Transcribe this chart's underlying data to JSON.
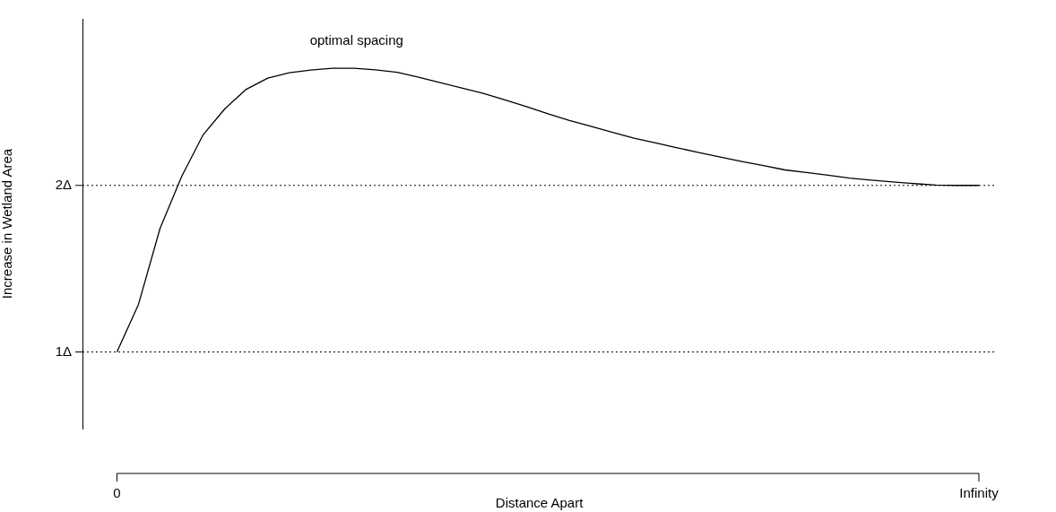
{
  "chart_data": {
    "type": "line",
    "xlabel": "Distance Apart",
    "ylabel": "Increase in Wetland Area",
    "categories": [
      "0",
      null,
      null,
      null,
      null,
      null,
      null,
      null,
      null,
      null,
      null,
      null,
      null,
      null,
      null,
      null,
      null,
      null,
      null,
      null,
      null,
      null,
      null,
      null,
      null,
      null,
      null,
      null,
      null,
      null,
      null,
      null,
      null,
      null,
      null,
      null,
      null,
      null,
      null,
      null,
      "Infinity"
    ],
    "series": [
      {
        "color": "#000000",
        "values": [
          1.0,
          1.286,
          1.742,
          2.053,
          2.304,
          2.459,
          2.577,
          2.644,
          2.676,
          2.692,
          2.703,
          2.703,
          2.694,
          2.679,
          2.649,
          2.617,
          2.585,
          2.553,
          2.514,
          2.473,
          2.43,
          2.39,
          2.355,
          2.319,
          2.284,
          2.255,
          2.226,
          2.197,
          2.17,
          2.144,
          2.119,
          2.093,
          2.077,
          2.061,
          2.044,
          2.032,
          2.021,
          2.011,
          2.002,
          2.0,
          2.0
        ]
      }
    ],
    "ylim": [
      0.54,
      3.0
    ],
    "yticks": [
      {
        "value": 1,
        "label": "1Δ"
      },
      {
        "value": 2,
        "label": "2Δ"
      }
    ],
    "ref_lines": [
      {
        "axis": "y",
        "value": 1,
        "color": "#000000",
        "line_style": "dotted"
      },
      {
        "axis": "y",
        "value": 2,
        "color": "#000000",
        "line_style": "dotted"
      }
    ],
    "annotations": [
      "optimal spacing"
    ],
    "grid": false,
    "legend": false,
    "marker": "none",
    "line_style": "solid"
  }
}
